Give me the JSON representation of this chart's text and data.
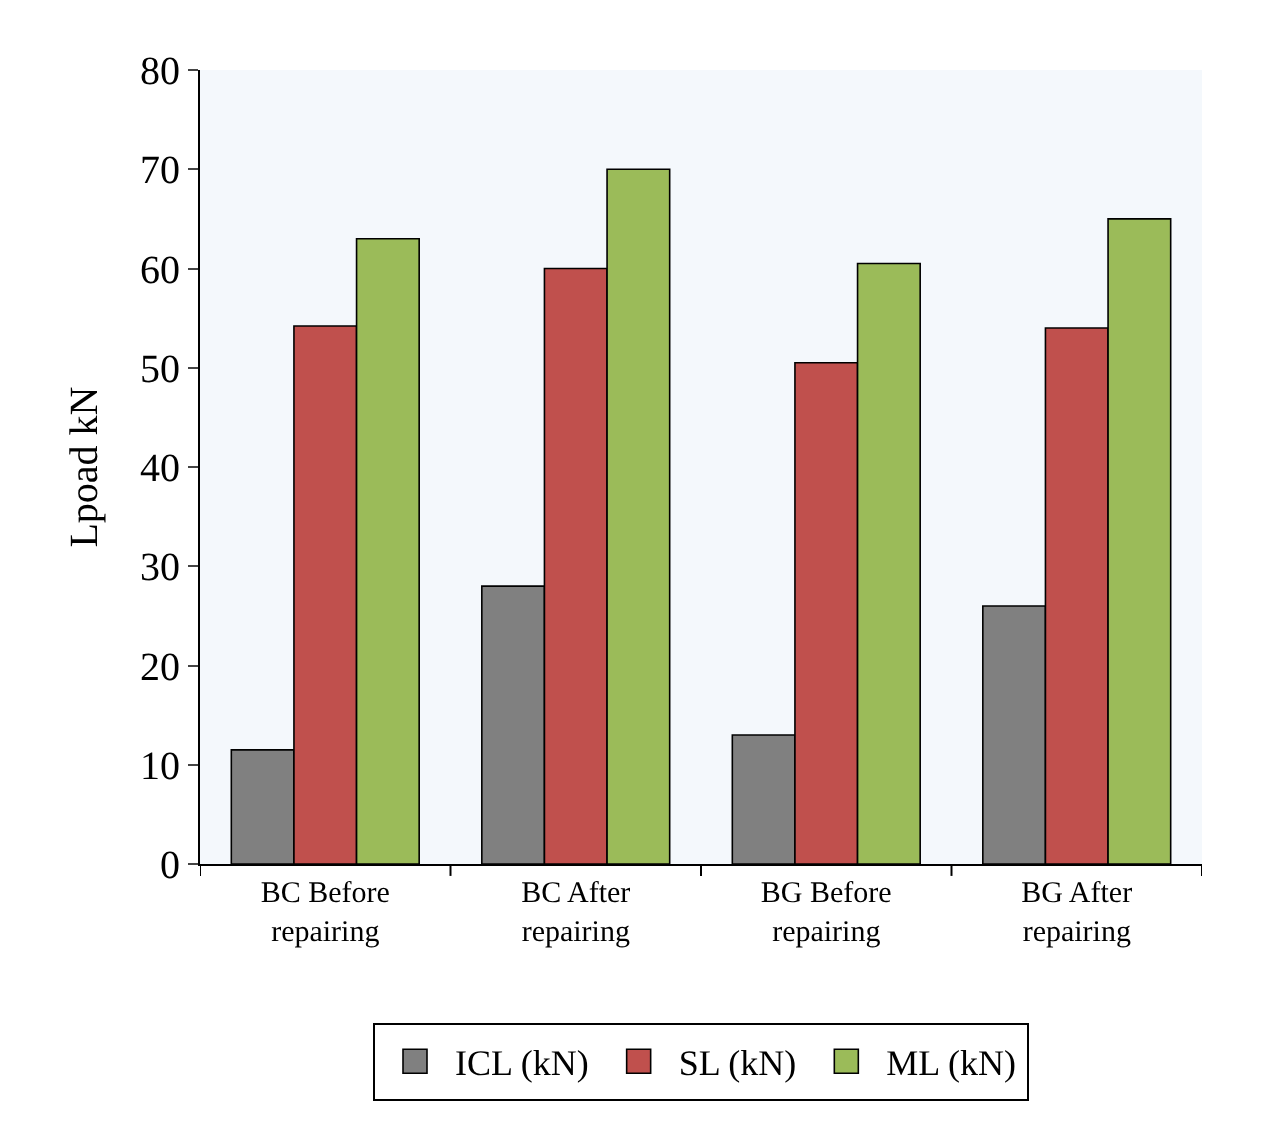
{
  "chart_data": {
    "type": "bar",
    "ylabel": "Lpoad kN",
    "categories": [
      "BC Before repairing",
      "BC After repairing",
      "BG Before repairing",
      "BG After repairing"
    ],
    "series": [
      {
        "name": "ICL (kN)",
        "color": "#808080",
        "values": [
          11.5,
          28,
          13,
          26
        ]
      },
      {
        "name": "SL (kN)",
        "color": "#c0504d",
        "values": [
          54.2,
          60,
          50.5,
          54
        ]
      },
      {
        "name": "ML (kN)",
        "color": "#9bbb59",
        "values": [
          63,
          70,
          60.5,
          65
        ]
      }
    ],
    "ylim": [
      0,
      80
    ],
    "yticks": [
      0,
      10,
      20,
      30,
      40,
      50,
      60,
      70,
      80
    ],
    "grid": false,
    "legend": "bottom"
  }
}
